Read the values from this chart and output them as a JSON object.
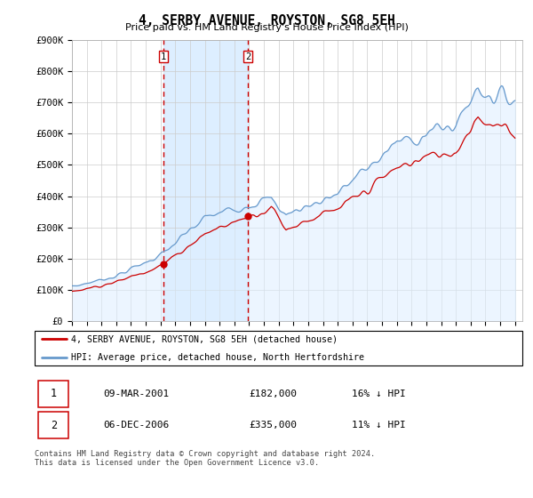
{
  "title": "4, SERBY AVENUE, ROYSTON, SG8 5EH",
  "subtitle": "Price paid vs. HM Land Registry's House Price Index (HPI)",
  "legend_line1": "4, SERBY AVENUE, ROYSTON, SG8 5EH (detached house)",
  "legend_line2": "HPI: Average price, detached house, North Hertfordshire",
  "footer": "Contains HM Land Registry data © Crown copyright and database right 2024.\nThis data is licensed under the Open Government Licence v3.0.",
  "sale1_date": "09-MAR-2001",
  "sale1_price": "£182,000",
  "sale1_hpi": "16% ↓ HPI",
  "sale2_date": "06-DEC-2006",
  "sale2_price": "£335,000",
  "sale2_hpi": "11% ↓ HPI",
  "sale1_x": 2001.19,
  "sale2_x": 2006.92,
  "sale1_y": 182000,
  "sale2_y": 335000,
  "ylim": [
    0,
    900000
  ],
  "xlim_start": 1995.0,
  "xlim_end": 2025.5,
  "red_color": "#cc0000",
  "blue_color": "#6699cc",
  "shade_color": "#ddeeff",
  "grid_color": "#cccccc",
  "dashed_color": "#cc0000"
}
